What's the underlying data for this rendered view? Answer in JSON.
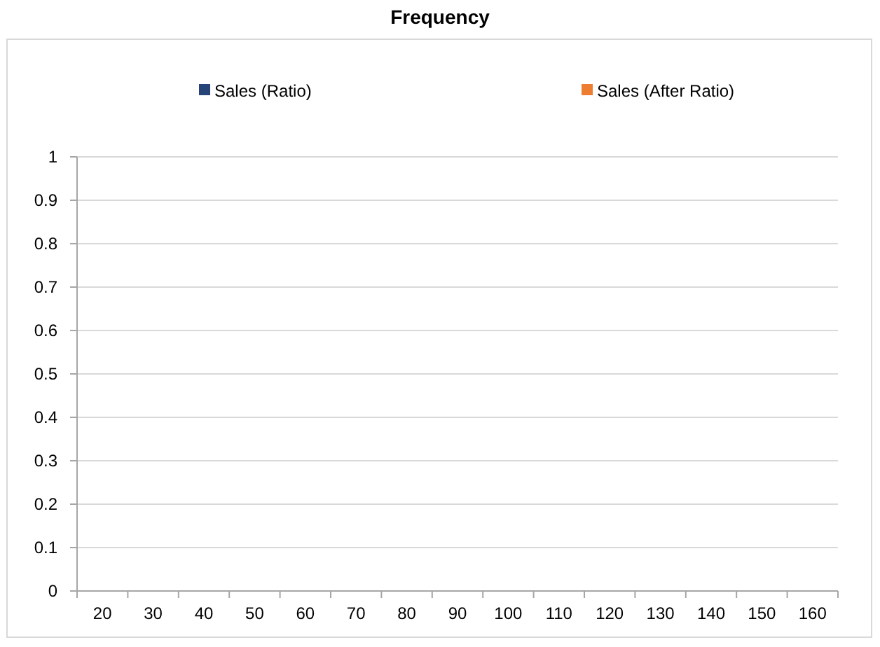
{
  "chart_data": {
    "type": "bar",
    "title": "Frequency",
    "categories": [
      "20",
      "30",
      "40",
      "50",
      "60",
      "70",
      "80",
      "90",
      "100",
      "110",
      "120",
      "130",
      "140",
      "150",
      "160"
    ],
    "series": [
      {
        "name": "Sales (Ratio)",
        "color": "#264478",
        "values": [
          0,
          0,
          0,
          0,
          0,
          0,
          0,
          0,
          0,
          0,
          0,
          0,
          0,
          0,
          0
        ]
      },
      {
        "name": "Sales (After Ratio)",
        "color": "#ed7d31",
        "values": [
          0,
          0,
          0,
          0,
          0,
          0,
          0,
          0,
          0,
          0,
          0,
          0,
          0,
          0,
          0
        ]
      }
    ],
    "ylim": [
      0,
      1
    ],
    "yticks": [
      0,
      0.1,
      0.2,
      0.3,
      0.4,
      0.5,
      0.6,
      0.7,
      0.8,
      0.9,
      1
    ],
    "grid": "y",
    "legend": "top"
  }
}
